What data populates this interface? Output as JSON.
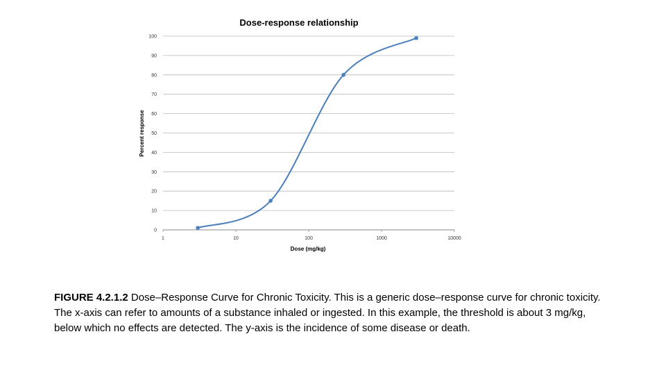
{
  "chart_data": {
    "type": "line",
    "title": "Dose-response relationship",
    "xlabel": "Dose (mg/kg)",
    "ylabel": "Percent response",
    "x_scale": "log",
    "xlim": [
      1,
      10000
    ],
    "ylim": [
      0,
      100
    ],
    "x_ticks": [
      "1",
      "10",
      "100",
      "1000",
      "10000"
    ],
    "y_ticks": [
      "0",
      "10",
      "20",
      "30",
      "40",
      "50",
      "60",
      "70",
      "80",
      "90",
      "100"
    ],
    "grid": true,
    "series": [
      {
        "x": [
          3,
          30,
          300,
          3000
        ],
        "y": [
          1,
          15,
          80,
          99
        ],
        "smooth": true
      }
    ],
    "colors": {
      "line": "#4a7ebb",
      "grid": "#b8b8b8",
      "axis": "#888888"
    }
  },
  "caption": {
    "figure_number": "FIGURE 4.2.1.2",
    "text": " Dose–Response Curve for Chronic Toxicity. This is a generic dose–response curve for chronic toxicity. The x-axis can refer to amounts of a substance inhaled or ingested. In this example, the threshold is about 3 mg/kg, below which no effects are detected. The y-axis is the incidence of some disease or death."
  }
}
